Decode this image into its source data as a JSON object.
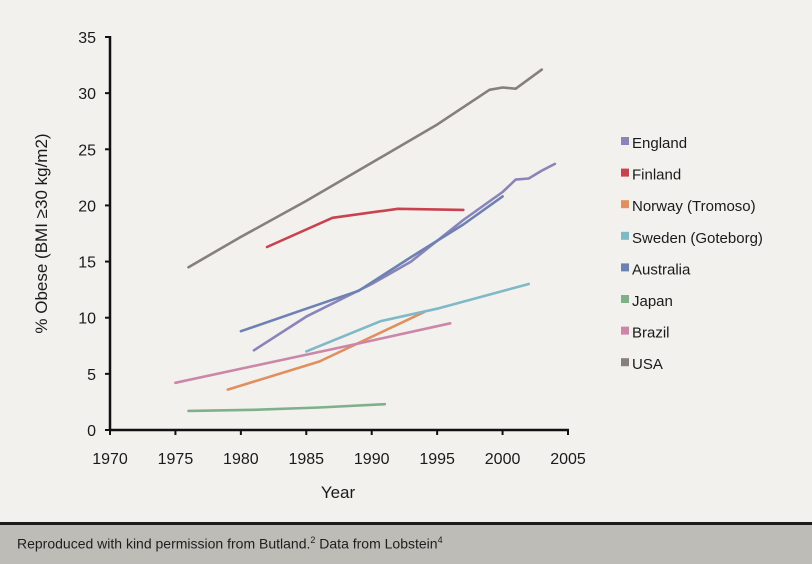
{
  "chart_data": {
    "type": "line",
    "title": "",
    "xlabel": "Year",
    "ylabel": "% Obese (BMI ≥30 kg/m2)",
    "xlim": [
      1970,
      2005
    ],
    "ylim": [
      0,
      35
    ],
    "xticks": [
      1970,
      1975,
      1980,
      1985,
      1990,
      1995,
      2000,
      2005
    ],
    "yticks": [
      0,
      5,
      10,
      15,
      20,
      25,
      30,
      35
    ],
    "grid": false,
    "legend_position": "right",
    "series": [
      {
        "name": "England",
        "color": "#8a84b8",
        "points": [
          [
            1981,
            7.1
          ],
          [
            1985,
            10.1
          ],
          [
            1990,
            13.0
          ],
          [
            1993,
            15.0
          ],
          [
            1997,
            18.7
          ],
          [
            2000,
            21.2
          ],
          [
            2001,
            22.3
          ],
          [
            2002,
            22.4
          ],
          [
            2003,
            23.1
          ],
          [
            2004,
            23.7
          ]
        ]
      },
      {
        "name": "Finland",
        "color": "#c8434f",
        "points": [
          [
            1982,
            16.3
          ],
          [
            1987,
            18.9
          ],
          [
            1992,
            19.7
          ],
          [
            1997,
            19.6
          ]
        ]
      },
      {
        "name": "Norway (Tromoso)",
        "color": "#e08f5f",
        "points": [
          [
            1979,
            3.6
          ],
          [
            1986,
            6.1
          ],
          [
            1994,
            10.5
          ]
        ]
      },
      {
        "name": "Sweden (Goteborg)",
        "color": "#7fb8c6",
        "points": [
          [
            1985,
            7.0
          ],
          [
            1990.7,
            9.7
          ],
          [
            1995,
            10.8
          ],
          [
            2002,
            13.0
          ]
        ]
      },
      {
        "name": "Australia",
        "color": "#6d82b3",
        "points": [
          [
            1980,
            8.8
          ],
          [
            1985,
            10.8
          ],
          [
            1989,
            12.4
          ],
          [
            1993,
            15.4
          ],
          [
            1997,
            18.3
          ],
          [
            2000,
            20.8
          ]
        ]
      },
      {
        "name": "Japan",
        "color": "#7fb08a",
        "points": [
          [
            1976,
            1.7
          ],
          [
            1981,
            1.8
          ],
          [
            1986,
            2.0
          ],
          [
            1991,
            2.3
          ]
        ]
      },
      {
        "name": "Brazil",
        "color": "#cc86a8",
        "points": [
          [
            1975,
            4.2
          ],
          [
            1989,
            7.7
          ],
          [
            1996,
            9.5
          ]
        ]
      },
      {
        "name": "USA",
        "color": "#857f7d",
        "points": [
          [
            1976,
            14.5
          ],
          [
            1980,
            17.2
          ],
          [
            1985,
            20.4
          ],
          [
            1990,
            23.8
          ],
          [
            1995,
            27.2
          ],
          [
            1999,
            30.3
          ],
          [
            2000,
            30.5
          ],
          [
            2001,
            30.4
          ],
          [
            2003,
            32.1
          ]
        ]
      }
    ]
  },
  "footer": {
    "text_part1": "Reproduced with kind permission from Butland.",
    "sup1": "2",
    "text_part2": " Data from Lobstein",
    "sup2": "4"
  }
}
